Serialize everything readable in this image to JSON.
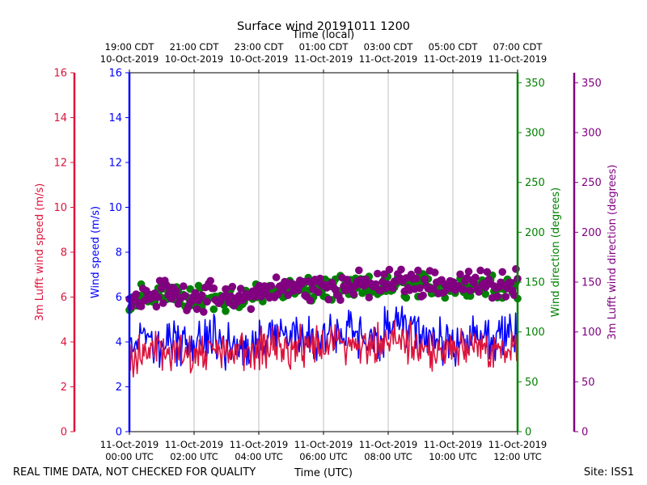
{
  "chart_data": {
    "type": "line+scatter",
    "title": "Surface wind 20191011 1200",
    "top_axis_label": "Time (local)",
    "xlabel": "Time (UTC)",
    "footer_left": "REAL TIME DATA, NOT CHECKED FOR QUALITY",
    "footer_right": "Site: ISS1",
    "x_range_hours": [
      0,
      12
    ],
    "bottom_ticks": [
      {
        "hour": 0,
        "line1": "11-Oct-2019",
        "line2": "00:00 UTC"
      },
      {
        "hour": 2,
        "line1": "11-Oct-2019",
        "line2": "02:00 UTC"
      },
      {
        "hour": 4,
        "line1": "11-Oct-2019",
        "line2": "04:00 UTC"
      },
      {
        "hour": 6,
        "line1": "11-Oct-2019",
        "line2": "06:00 UTC"
      },
      {
        "hour": 8,
        "line1": "11-Oct-2019",
        "line2": "08:00 UTC"
      },
      {
        "hour": 10,
        "line1": "11-Oct-2019",
        "line2": "10:00 UTC"
      },
      {
        "hour": 12,
        "line1": "11-Oct-2019",
        "line2": "12:00 UTC"
      }
    ],
    "top_ticks": [
      {
        "hour": 0,
        "line1": "19:00 CDT",
        "line2": "10-Oct-2019"
      },
      {
        "hour": 2,
        "line1": "21:00 CDT",
        "line2": "10-Oct-2019"
      },
      {
        "hour": 4,
        "line1": "23:00 CDT",
        "line2": "10-Oct-2019"
      },
      {
        "hour": 6,
        "line1": "01:00 CDT",
        "line2": "11-Oct-2019"
      },
      {
        "hour": 8,
        "line1": "03:00 CDT",
        "line2": "11-Oct-2019"
      },
      {
        "hour": 10,
        "line1": "05:00 CDT",
        "line2": "11-Oct-2019"
      },
      {
        "hour": 12,
        "line1": "07:00 CDT",
        "line2": "11-Oct-2019"
      }
    ],
    "axes": {
      "lufft_speed": {
        "label": "3m Lufft wind speed (m/s)",
        "range": [
          0,
          16
        ],
        "ticks": [
          "0",
          "2",
          "4",
          "6",
          "8",
          "10",
          "12",
          "14",
          "16"
        ],
        "color": "#dc143c"
      },
      "wind_speed": {
        "label": "Wind speed (m/s)",
        "range": [
          0,
          16
        ],
        "ticks": [
          "0",
          "2",
          "4",
          "6",
          "8",
          "10",
          "12",
          "14",
          "16"
        ],
        "color": "#0000ff"
      },
      "wind_dir": {
        "label": "Wind direction (degrees)",
        "range": [
          0,
          360
        ],
        "ticks": [
          "0",
          "50",
          "100",
          "150",
          "200",
          "250",
          "300",
          "350"
        ],
        "color": "#008000"
      },
      "lufft_dir": {
        "label": "3m Lufft wind direction (degrees)",
        "range": [
          0,
          360
        ],
        "ticks": [
          "0",
          "50",
          "100",
          "150",
          "200",
          "250",
          "300",
          "350"
        ],
        "color": "#800080"
      }
    },
    "series": [
      {
        "name": "Wind speed",
        "axis": "wind_speed",
        "style": "line",
        "color": "#0000ff",
        "x": [
          0,
          0.5,
          1,
          1.5,
          2,
          2.5,
          3,
          3.5,
          4,
          4.5,
          5,
          5.5,
          6,
          6.5,
          7,
          7.5,
          8,
          8.5,
          9,
          9.5,
          10,
          10.5,
          11,
          11.5,
          12
        ],
        "y": [
          3.9,
          4.1,
          3.8,
          4.0,
          3.9,
          4.2,
          3.8,
          4.0,
          4.1,
          4.0,
          4.2,
          4.3,
          4.2,
          4.4,
          4.2,
          4.1,
          4.5,
          4.6,
          4.2,
          4.1,
          4.0,
          4.2,
          4.1,
          4.1,
          4.3
        ],
        "spread": 0.9
      },
      {
        "name": "3m Lufft wind speed",
        "axis": "lufft_speed",
        "style": "line",
        "color": "#dc143c",
        "x": [
          0,
          0.5,
          1,
          1.5,
          2,
          2.5,
          3,
          3.5,
          4,
          4.5,
          5,
          5.5,
          6,
          6.5,
          7,
          7.5,
          8,
          8.5,
          9,
          9.5,
          10,
          10.5,
          11,
          11.5,
          12
        ],
        "y": [
          3.3,
          3.5,
          3.4,
          3.6,
          3.5,
          3.7,
          3.6,
          3.7,
          3.6,
          3.8,
          3.7,
          3.9,
          3.8,
          3.9,
          3.8,
          3.7,
          4.0,
          4.0,
          3.8,
          3.6,
          3.7,
          3.9,
          3.8,
          3.7,
          3.9
        ],
        "spread": 0.8
      },
      {
        "name": "Wind direction",
        "axis": "wind_dir",
        "style": "scatter",
        "color": "#008000",
        "x": [
          0,
          0.5,
          1,
          1.5,
          2,
          2.5,
          3,
          3.5,
          4,
          4.5,
          5,
          5.5,
          6,
          6.5,
          7,
          7.5,
          8,
          8.5,
          9,
          9.5,
          10,
          10.5,
          11,
          11.5,
          12
        ],
        "y": [
          132,
          135,
          138,
          136,
          134,
          133,
          132,
          134,
          138,
          140,
          142,
          141,
          143,
          142,
          144,
          143,
          145,
          146,
          147,
          146,
          145,
          146,
          147,
          148,
          147
        ],
        "spread": 10
      },
      {
        "name": "3m Lufft wind direction",
        "axis": "lufft_dir",
        "style": "scatter",
        "color": "#800080",
        "x": [
          0,
          0.5,
          1,
          1.5,
          2,
          2.5,
          3,
          3.5,
          4,
          4.5,
          5,
          5.5,
          6,
          6.5,
          7,
          7.5,
          8,
          8.5,
          9,
          9.5,
          10,
          10.5,
          11,
          11.5,
          12
        ],
        "y": [
          130,
          135,
          140,
          137,
          135,
          136,
          132,
          134,
          140,
          142,
          145,
          144,
          146,
          145,
          147,
          146,
          150,
          151,
          150,
          149,
          148,
          148,
          149,
          149,
          150
        ],
        "spread": 11
      }
    ],
    "grid": true
  }
}
